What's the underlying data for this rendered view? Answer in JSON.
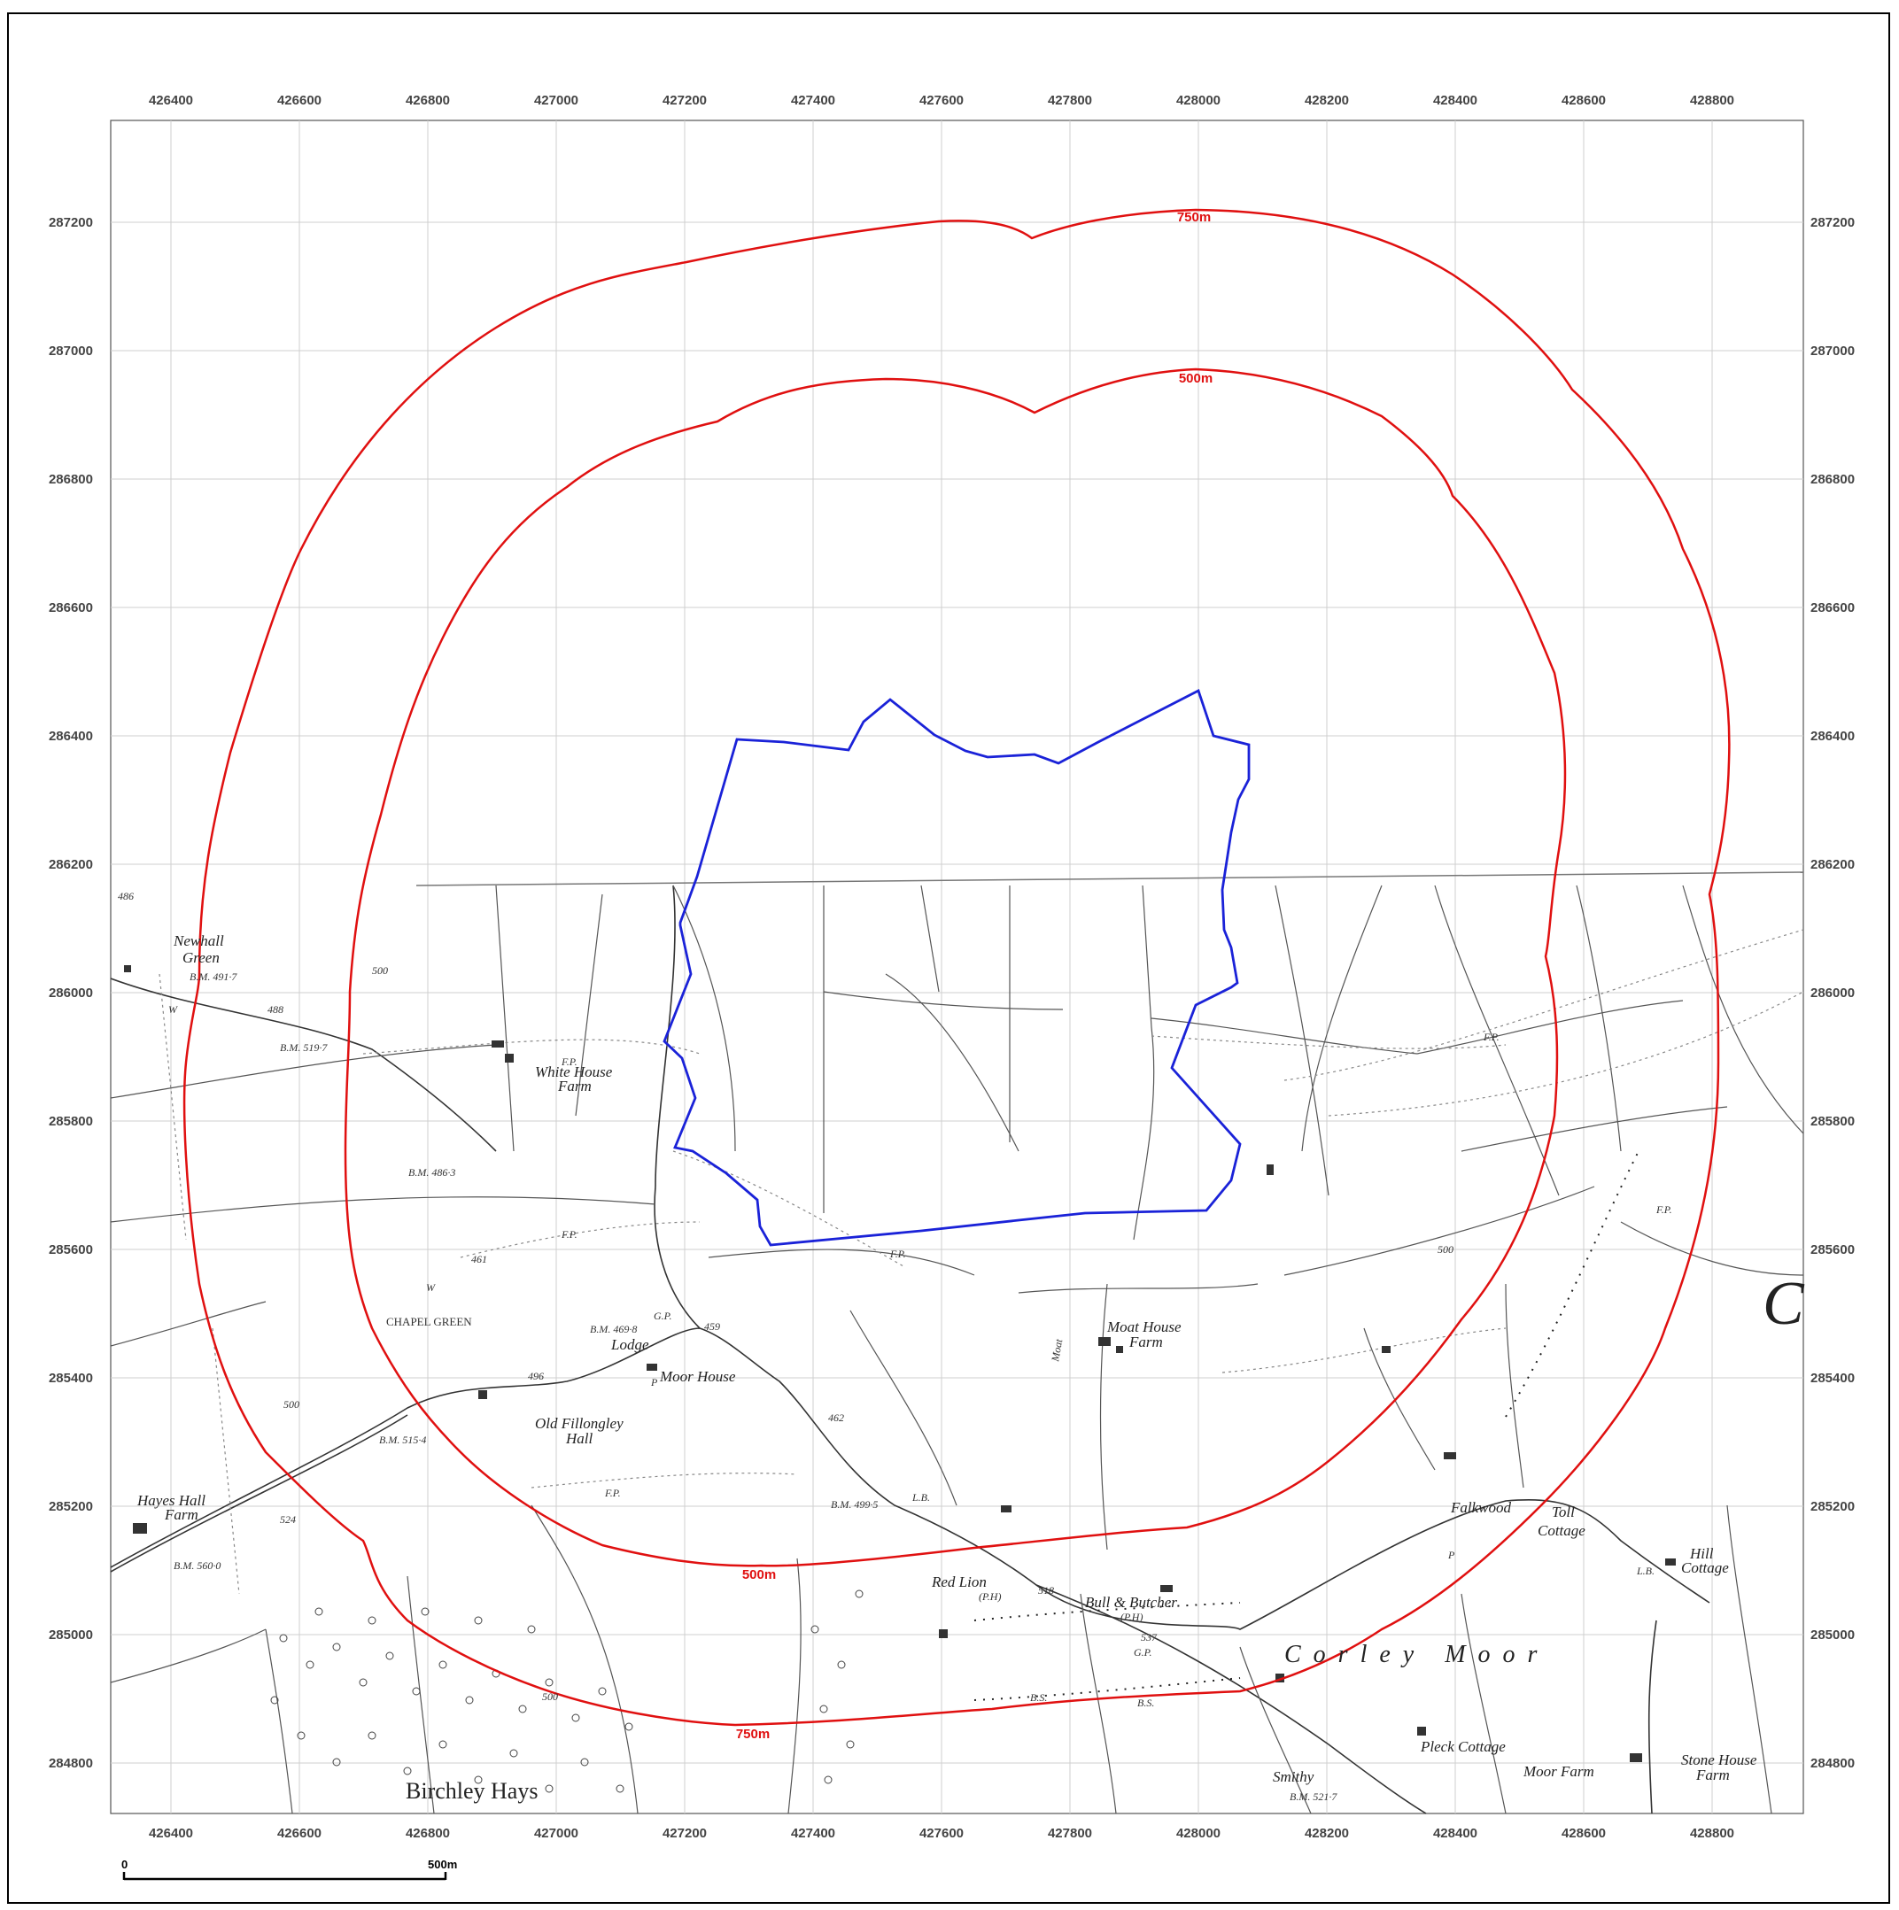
{
  "map": {
    "eastings": [
      "426400",
      "426600",
      "426800",
      "427000",
      "427200",
      "427400",
      "427600",
      "427800",
      "428000",
      "428200",
      "428400",
      "428600",
      "428800"
    ],
    "northings": [
      "287200",
      "287000",
      "286800",
      "286600",
      "286400",
      "286200",
      "286000",
      "285800",
      "285600",
      "285400",
      "285200",
      "285000",
      "284800"
    ],
    "buffers": [
      {
        "label": "750m",
        "color": "#e01010"
      },
      {
        "label": "500m",
        "color": "#e01010"
      }
    ],
    "site_boundary_color": "#1a22d8",
    "place_labels": {
      "newhall_green_1": "Newhall",
      "newhall_green_2": "Green",
      "white_house_farm_1": "White House",
      "white_house_farm_2": "Farm",
      "chapel_green": "CHAPEL GREEN",
      "old_fillongley_hall_1": "Old Fillongley",
      "old_fillongley_hall_2": "Hall",
      "lodge": "Lodge",
      "moor_house": "Moor House",
      "hayes_hall_farm_1": "Hayes Hall",
      "hayes_hall_farm_2": "Farm",
      "moat_house_farm_1": "Moat House",
      "moat_house_farm_2": "Farm",
      "red_lion_1": "Red Lion",
      "red_lion_2": "(P.H)",
      "bull_butcher_1": "Bull & Butcher",
      "bull_butcher_2": "(P.H)",
      "falkwood": "Falkwood",
      "toll_cottage_1": "Toll",
      "toll_cottage_2": "Cottage",
      "hill_cottage_1": "Hill",
      "hill_cottage_2": "Cottage",
      "corley_moor": "Corley Moor",
      "pleck_cottage": "Pleck Cottage",
      "moor_farm": "Moor Farm",
      "stone_house_farm_1": "Stone House",
      "stone_house_farm_2": "Farm",
      "smithy": "Smithy",
      "birchley_hays": "Birchley Hays",
      "moat": "Moat"
    },
    "benchmarks": {
      "bm_4917": "B.M. 491·7",
      "bm_5197": "B.M. 519·7",
      "bm_4863": "B.M. 486·3",
      "bm_4698": "B.M. 469·8",
      "bm_5154": "B.M. 515·4",
      "bm_5600": "B.M. 560·0",
      "bm_4995": "B.M. 499·5",
      "bm_5217": "B.M. 521·7",
      "h486": "486",
      "h488": "488",
      "h461": "461",
      "h496": "496",
      "h459": "459",
      "h462": "462",
      "h524": "524",
      "h518": "518",
      "h537": "537",
      "fp": "F.P.",
      "w": "W",
      "gp": "G.P.",
      "lb": "L.B.",
      "bs": "B.S.",
      "p": "P",
      "c500": "500"
    },
    "scale_bar": {
      "start": "0",
      "end": "500m"
    }
  }
}
